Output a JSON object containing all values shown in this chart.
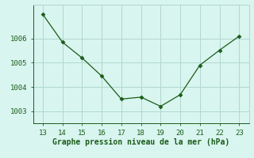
{
  "x": [
    13,
    14,
    15,
    16,
    17,
    18,
    19,
    20,
    21,
    22,
    23
  ],
  "y": [
    1007.0,
    1005.85,
    1005.2,
    1004.45,
    1003.5,
    1003.58,
    1003.2,
    1003.68,
    1004.9,
    1005.52,
    1006.1
  ],
  "line_color": "#1a5c1a",
  "marker": "D",
  "marker_size": 2.5,
  "background_color": "#d9f5ef",
  "grid_color": "#b0d8d0",
  "xlabel": "Graphe pression niveau de la mer (hPa)",
  "xlabel_color": "#1a5c1a",
  "xlabel_fontsize": 7,
  "tick_color": "#1a5c1a",
  "tick_fontsize": 6.5,
  "xlim": [
    12.5,
    23.5
  ],
  "ylim": [
    1002.5,
    1007.4
  ],
  "yticks": [
    1003,
    1004,
    1005,
    1006
  ],
  "xticks": [
    13,
    14,
    15,
    16,
    17,
    18,
    19,
    20,
    21,
    22,
    23
  ],
  "spine_color": "#1a5c1a"
}
